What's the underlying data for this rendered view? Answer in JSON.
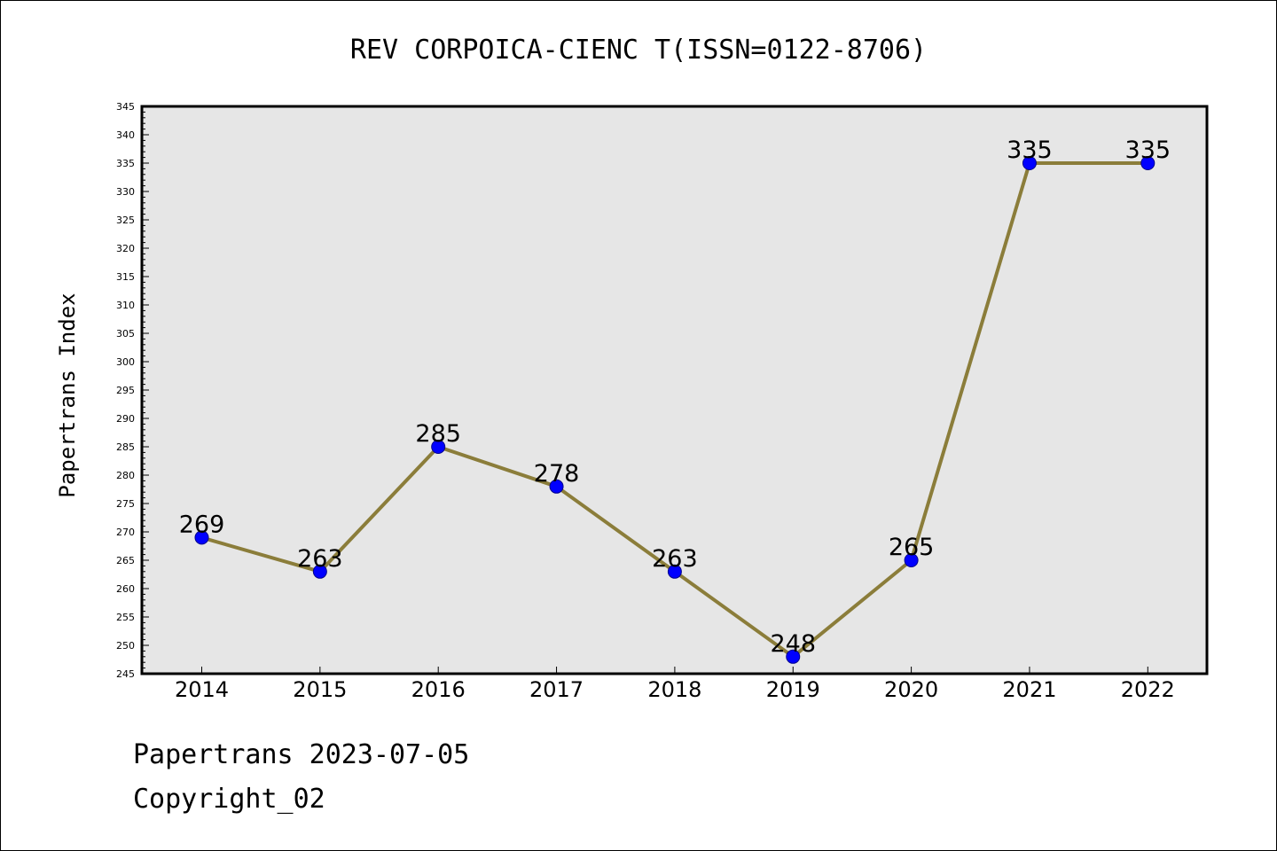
{
  "chart_data": {
    "type": "line",
    "title": "REV CORPOICA-CIENC T(ISSN=0122-8706)",
    "xlabel": "",
    "ylabel": "Papertrans Index",
    "categories": [
      "2014",
      "2015",
      "2016",
      "2017",
      "2018",
      "2019",
      "2020",
      "2021",
      "2022"
    ],
    "series": [
      {
        "values": [
          269,
          263,
          285,
          278,
          263,
          248,
          265,
          335,
          335
        ]
      }
    ],
    "data_labels": [
      "269",
      "263",
      "285",
      "278",
      "263",
      "248",
      "265",
      "335",
      "335"
    ],
    "ylim": [
      245,
      345
    ],
    "y_major_ticks": [
      "245",
      "250",
      "255",
      "260",
      "265",
      "270",
      "275",
      "280",
      "285",
      "290",
      "295",
      "300",
      "305",
      "310",
      "315",
      "320",
      "325",
      "330",
      "335",
      "340",
      "345"
    ],
    "grid": false,
    "legend": "none",
    "colors": {
      "line": "#8b7d3a",
      "marker": "#0000ff",
      "plot_bg": "#e6e6e6",
      "frame": "#000000"
    }
  },
  "footer": {
    "date_line": "Papertrans 2023-07-05",
    "copyright": "Copyright_02"
  }
}
